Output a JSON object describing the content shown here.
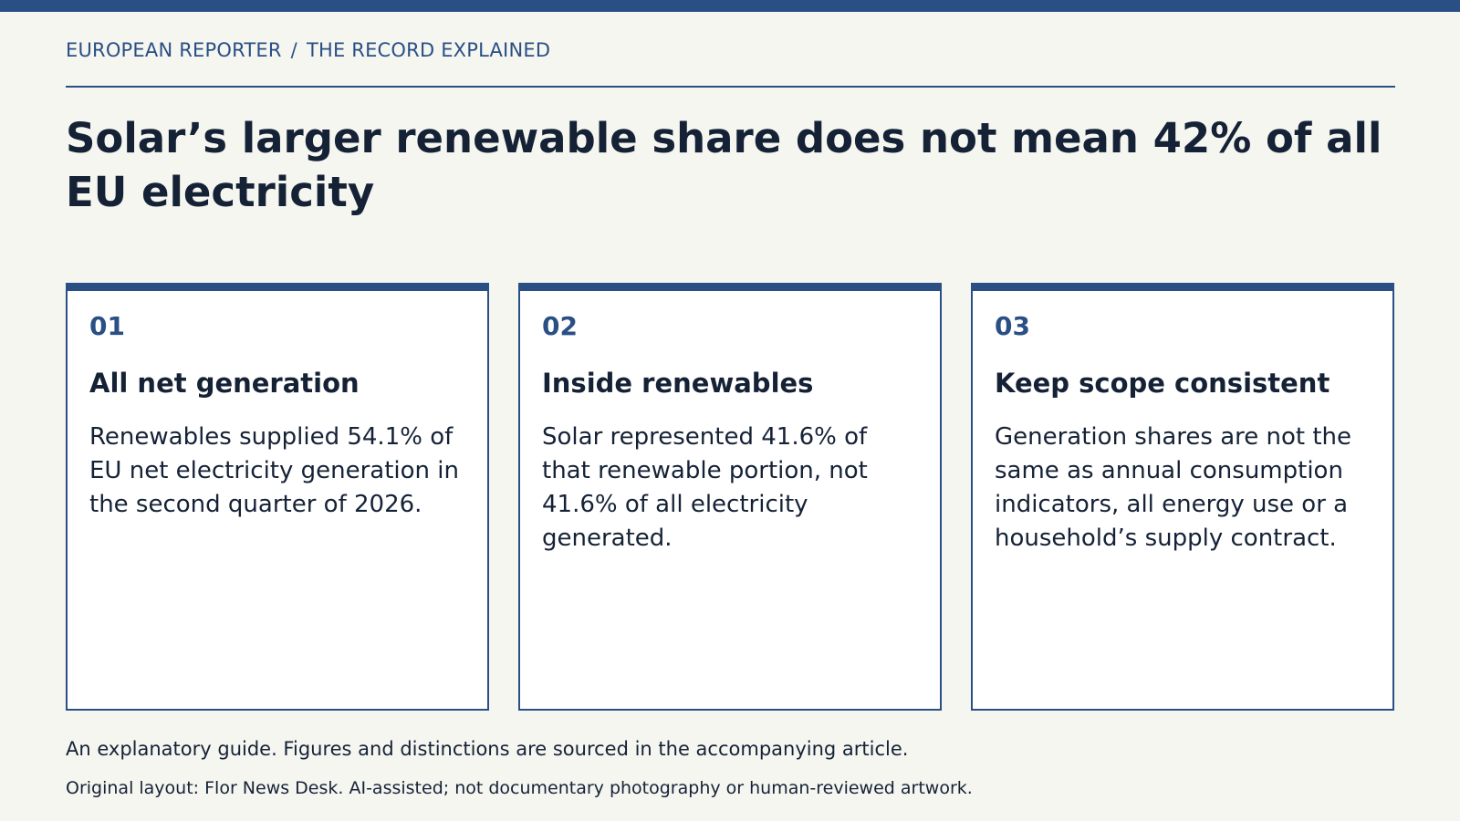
{
  "header": {
    "publication": "EUROPEAN REPORTER",
    "separator": "/",
    "section": "THE RECORD EXPLAINED"
  },
  "headline": "Solar’s larger renewable share does not mean 42% of all EU electricity",
  "cards": [
    {
      "number": "01",
      "title": "All net generation",
      "body": "Renewables supplied 54.1% of EU net electricity generation in the second quarter of 2026."
    },
    {
      "number": "02",
      "title": "Inside renewables",
      "body": "Solar represented 41.6% of that renewable portion, not 41.6% of all electricity generated."
    },
    {
      "number": "03",
      "title": "Keep scope consistent",
      "body": "Generation shares are not the same as annual consumption indicators, all energy use or a household’s supply contract."
    }
  ],
  "footer": {
    "note": "An explanatory guide. Figures and distinctions are sourced in the accompanying article.",
    "credit": "Original layout: Flor News Desk. AI-assisted; not documentary photography or human-reviewed artwork."
  },
  "colors": {
    "accent": "#2a4f84",
    "text": "#152236",
    "background": "#f6f6f1",
    "card_background": "#ffffff"
  }
}
